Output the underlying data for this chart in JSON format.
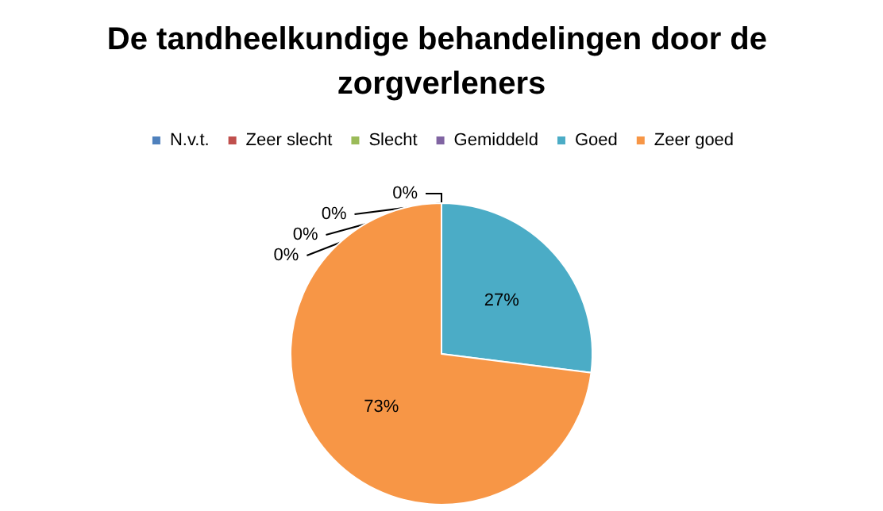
{
  "chart_data": {
    "type": "pie",
    "title": "De tandheelkundige behandelingen door de zorgverleners",
    "categories": [
      "N.v.t.",
      "Zeer slecht",
      "Slecht",
      "Gemiddeld",
      "Goed",
      "Zeer goed"
    ],
    "values": [
      0,
      0,
      0,
      0,
      27,
      73
    ],
    "colors": [
      "#4f81bd",
      "#c0504d",
      "#9bbb59",
      "#8064a2",
      "#4bacc6",
      "#f79646"
    ],
    "value_labels": [
      "0%",
      "0%",
      "0%",
      "0%",
      "27%",
      "73%"
    ],
    "legend": "top"
  }
}
